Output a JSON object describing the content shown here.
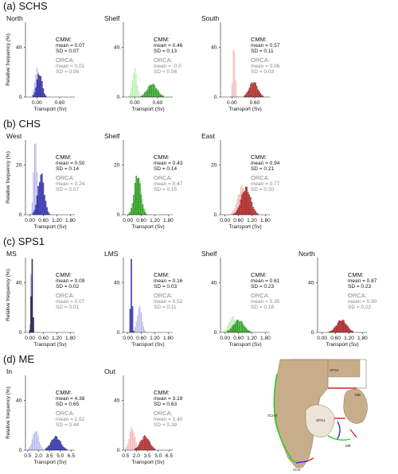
{
  "figure": {
    "sections": [
      {
        "id": "a",
        "label": "(a) SCHS"
      },
      {
        "id": "b",
        "label": "(b) CHS"
      },
      {
        "id": "c",
        "label": "(c) SPS1"
      },
      {
        "id": "d",
        "label": "(d) ME"
      }
    ],
    "ylabel": "Relative frequency (%)",
    "xlabel": "Transport (Sv)",
    "stats_labels": {
      "cmm": "CMM:",
      "orca": "ORCA:"
    },
    "map_labels": [
      "SPS2",
      "MB",
      "SCHS",
      "SPS1",
      "ME",
      "CHS"
    ]
  },
  "chart_data": [
    {
      "section": "a",
      "title": "North",
      "type": "bar",
      "color": "#2a2ad8",
      "light": "#b3b3ee",
      "xlabel": "Transport (Sv)",
      "xlim": [
        -0.3,
        1.0
      ],
      "xticks": [
        0.0,
        0.6
      ],
      "xtick_labels": [
        "0.00",
        "0.60"
      ],
      "ylim": [
        0,
        60
      ],
      "yticks": [
        0,
        40
      ],
      "cmm": {
        "mean_label": "mean = 0.07",
        "sd_label": "SD = 0.07",
        "mean": 0.07,
        "sd": 0.07
      },
      "orca": {
        "mean_label": "mean = 0.01",
        "sd_label": "SD = 0.06",
        "mean": 0.01,
        "sd": 0.06
      }
    },
    {
      "section": "a",
      "title": "Shelf",
      "type": "bar",
      "color": "#33cc22",
      "light": "#b6ecae",
      "xlabel": "Transport (Sv)",
      "xlim": [
        -0.3,
        1.0
      ],
      "xticks": [
        0.0,
        0.6
      ],
      "xtick_labels": [
        "0.00",
        "0.60"
      ],
      "ylim": [
        0,
        60
      ],
      "yticks": [
        0,
        40
      ],
      "cmm": {
        "mean_label": "mean = 0.46",
        "sd_label": "SD = 0.13",
        "mean": 0.46,
        "sd": 0.13
      },
      "orca": {
        "mean_label": "mean = -0.0",
        "sd_label": "SD = 0.06",
        "mean": 0.0,
        "sd": 0.06
      }
    },
    {
      "section": "a",
      "title": "South",
      "type": "bar",
      "color": "#dd2222",
      "light": "#f2b3b3",
      "xlabel": "Transport (Sv)",
      "xlim": [
        -0.3,
        1.0
      ],
      "xticks": [
        0.0,
        0.6
      ],
      "xtick_labels": [
        "0.00",
        "0.60"
      ],
      "ylim": [
        0,
        60
      ],
      "yticks": [
        0,
        40
      ],
      "cmm": {
        "mean_label": "mean = 0.57",
        "sd_label": "SD = 0.11",
        "mean": 0.57,
        "sd": 0.11
      },
      "orca": {
        "mean_label": "mean = 0.06",
        "sd_label": "SD = 0.03",
        "mean": 0.06,
        "sd": 0.03
      }
    },
    {
      "section": "b",
      "title": "West",
      "type": "bar",
      "color": "#2a2ad8",
      "light": "#b3b3ee",
      "xlabel": "Transport (Sv)",
      "xlim": [
        -0.2,
        2.0
      ],
      "xticks": [
        0.0,
        0.6,
        1.2,
        1.8
      ],
      "xtick_labels": [
        "0.00",
        "0.60",
        "1.20",
        "1.80"
      ],
      "ylim": [
        0,
        30
      ],
      "yticks": [
        0,
        20
      ],
      "cmm": {
        "mean_label": "mean = 0.50",
        "sd_label": "SD = 0.14",
        "mean": 0.5,
        "sd": 0.14
      },
      "orca": {
        "mean_label": "mean = 0.24",
        "sd_label": "SD = 0.07",
        "mean": 0.24,
        "sd": 0.07
      }
    },
    {
      "section": "b",
      "title": "Shelf",
      "type": "bar",
      "color": "#33cc22",
      "light": "#b6ecae",
      "xlabel": "Transport (Sv)",
      "xlim": [
        -0.2,
        2.0
      ],
      "xticks": [
        0.0,
        0.6,
        1.2,
        1.8
      ],
      "xtick_labels": [
        "0.00",
        "0.60",
        "1.20",
        "1.80"
      ],
      "ylim": [
        0,
        30
      ],
      "yticks": [
        0,
        20
      ],
      "cmm": {
        "mean_label": "mean = 0.43",
        "sd_label": "SD = 0.14",
        "mean": 0.43,
        "sd": 0.14
      },
      "orca": {
        "mean_label": "mean = 0.47",
        "sd_label": "SD = 0.15",
        "mean": 0.47,
        "sd": 0.15
      }
    },
    {
      "section": "b",
      "title": "East",
      "type": "bar",
      "color": "#dd2222",
      "light": "#f2b3b3",
      "xlabel": "Transport (Sv)",
      "xlim": [
        -0.2,
        2.0
      ],
      "xticks": [
        0.0,
        0.6,
        1.2,
        1.8
      ],
      "xtick_labels": [
        "0.00",
        "0.60",
        "1.20",
        "1.80"
      ],
      "ylim": [
        0,
        30
      ],
      "yticks": [
        0,
        20
      ],
      "cmm": {
        "mean_label": "mean = 0.94",
        "sd_label": "SD = 0.21",
        "mean": 0.94,
        "sd": 0.21
      },
      "orca": {
        "mean_label": "mean = 0.77",
        "sd_label": "SD = 0.20",
        "mean": 0.77,
        "sd": 0.2
      }
    },
    {
      "section": "c",
      "title": "MS",
      "type": "bar",
      "color": "#1a1a50",
      "light": "#9c9cc8",
      "xlabel": "Transport (Sv)",
      "xlim": [
        -0.2,
        2.0
      ],
      "xticks": [
        0.0,
        0.6,
        1.2,
        1.8
      ],
      "xtick_labels": [
        "0.00",
        "0.60",
        "1.20",
        "1.80"
      ],
      "ylim": [
        0,
        60
      ],
      "yticks": [
        0,
        40
      ],
      "cmm": {
        "mean_label": "mean = 0.09",
        "sd_label": "SD = 0.02",
        "mean": 0.09,
        "sd": 0.02
      },
      "orca": {
        "mean_label": "mean = 0.07",
        "sd_label": "SD = 0.01",
        "mean": 0.07,
        "sd": 0.01
      }
    },
    {
      "section": "c",
      "title": "LMS",
      "type": "bar",
      "color": "#2a2ad8",
      "light": "#b3b3ee",
      "xlabel": "Transport (Sv)",
      "xlim": [
        -0.2,
        2.0
      ],
      "xticks": [
        0.0,
        0.6,
        1.2,
        1.8
      ],
      "xtick_labels": [
        "0.00",
        "0.60",
        "1.20",
        "1.80"
      ],
      "ylim": [
        0,
        60
      ],
      "yticks": [
        0,
        40
      ],
      "cmm": {
        "mean_label": "mean = 0.16",
        "sd_label": "SD = 0.03",
        "mean": 0.16,
        "sd": 0.03
      },
      "orca": {
        "mean_label": "mean = 0.52",
        "sd_label": "SD = 0.11",
        "mean": 0.52,
        "sd": 0.11
      }
    },
    {
      "section": "c",
      "title": "Shelf",
      "type": "bar",
      "color": "#33cc22",
      "light": "#b6ecae",
      "xlabel": "Transport (Sv)",
      "xlim": [
        -0.2,
        2.0
      ],
      "xticks": [
        0.0,
        0.6,
        1.2,
        1.8
      ],
      "xtick_labels": [
        "0.00",
        "0.60",
        "1.20",
        "1.80"
      ],
      "ylim": [
        0,
        60
      ],
      "yticks": [
        0,
        40
      ],
      "cmm": {
        "mean_label": "mean = 0.61",
        "sd_label": "SD = 0.23",
        "mean": 0.61,
        "sd": 0.23
      },
      "orca": {
        "mean_label": "mean = 0.35",
        "sd_label": "SD = 0.18",
        "mean": 0.35,
        "sd": 0.18
      }
    },
    {
      "section": "c",
      "title": "North",
      "type": "bar",
      "color": "#dd2222",
      "light": "#f2b3b3",
      "xlabel": "Transport (Sv)",
      "xlim": [
        -0.2,
        2.0
      ],
      "xticks": [
        0.0,
        0.6,
        1.2,
        1.8
      ],
      "xtick_labels": [
        "0.00",
        "0.60",
        "1.20",
        "1.80"
      ],
      "ylim": [
        0,
        60
      ],
      "yticks": [
        0,
        40
      ],
      "cmm": {
        "mean_label": "mean = 0.87",
        "sd_label": "SD = 0.23",
        "mean": 0.87,
        "sd": 0.23
      },
      "orca": {
        "mean_label": "mean = 0.90",
        "sd_label": "SD = 0.22",
        "mean": 0.9,
        "sd": 0.22
      }
    },
    {
      "section": "d",
      "title": "In",
      "type": "bar",
      "color": "#2a2ad8",
      "light": "#b3b3ee",
      "xlabel": "Transport (Sv)",
      "xlim": [
        0.2,
        7.0
      ],
      "xticks": [
        0.5,
        2.0,
        3.5,
        5.0,
        6.5
      ],
      "xtick_labels": [
        "0.5",
        "2.0",
        "3.5",
        "5.0",
        "6.5"
      ],
      "ylim": [
        0,
        60
      ],
      "yticks": [
        0,
        40
      ],
      "cmm": {
        "mean_label": "mean = 4.38",
        "sd_label": "SD = 0.65",
        "mean": 4.38,
        "sd": 0.65
      },
      "orca": {
        "mean_label": "mean = 1.62",
        "sd_label": "SD = 0.44",
        "mean": 1.62,
        "sd": 0.44
      }
    },
    {
      "section": "d",
      "title": "Out",
      "type": "bar",
      "color": "#dd2222",
      "light": "#f2b3b3",
      "xlabel": "Transport (Sv)",
      "xlim": [
        0.2,
        7.0
      ],
      "xticks": [
        0.5,
        2.0,
        3.5,
        5.0,
        6.5
      ],
      "xtick_labels": [
        "0.5",
        "2.0",
        "3.5",
        "5.0",
        "6.5"
      ],
      "ylim": [
        0,
        60
      ],
      "yticks": [
        0,
        40
      ],
      "cmm": {
        "mean_label": "mean = 3.19",
        "sd_label": "SD = 0.63",
        "mean": 3.19,
        "sd": 0.63
      },
      "orca": {
        "mean_label": "mean = 1.40",
        "sd_label": "SD = 0.39",
        "mean": 1.4,
        "sd": 0.39
      }
    }
  ]
}
